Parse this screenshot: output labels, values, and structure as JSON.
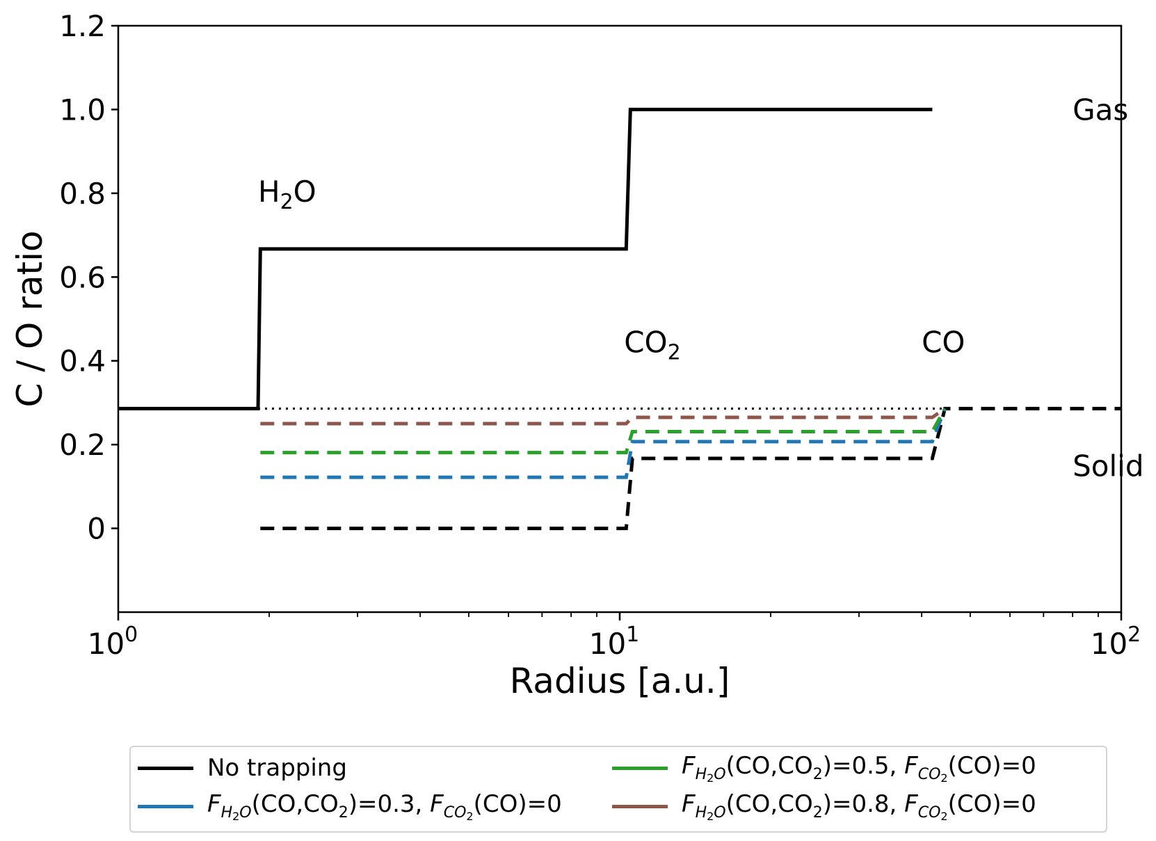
{
  "chart_data": {
    "type": "line",
    "title": "",
    "xlabel": "Radius [a.u.]",
    "ylabel": "C / O ratio",
    "xscale": "log",
    "xlim": [
      1,
      100
    ],
    "ylim": [
      -0.2,
      1.2
    ],
    "xticks": [
      {
        "value": 1,
        "base": "10",
        "exp": "0"
      },
      {
        "value": 10,
        "base": "10",
        "exp": "1"
      },
      {
        "value": 100,
        "base": "10",
        "exp": "2"
      }
    ],
    "yticks": [
      {
        "value": 0,
        "label": "0"
      },
      {
        "value": 0.2,
        "label": "0.2"
      },
      {
        "value": 0.4,
        "label": "0.4"
      },
      {
        "value": 0.6,
        "label": "0.6"
      },
      {
        "value": 0.8,
        "label": "0.8"
      },
      {
        "value": 1.0,
        "label": "1.0"
      },
      {
        "value": 1.2,
        "label": "1.2"
      }
    ],
    "grid": false,
    "legend_position": "bottom, outside plot",
    "annotations": [
      {
        "id": "h2o",
        "base": "H",
        "sub": "2",
        "rest": "O",
        "x": 1.9,
        "y": 0.78
      },
      {
        "id": "co2",
        "base": "CO",
        "sub": "2",
        "rest": "",
        "x": 10.2,
        "y": 0.42
      },
      {
        "id": "co",
        "base": "CO",
        "sub": "",
        "rest": "",
        "x": 40,
        "y": 0.42
      },
      {
        "id": "gas",
        "base": "Gas",
        "sub": "",
        "rest": "",
        "x": 80,
        "y": 0.975
      },
      {
        "id": "solid",
        "base": "Solid",
        "sub": "",
        "rest": "",
        "x": 80,
        "y": 0.125
      }
    ],
    "series": [
      {
        "id": "gas_no_trapping",
        "phase": "gas",
        "color": "#000000",
        "style": "solid",
        "x": [
          1,
          1.9,
          1.92,
          10.3,
          10.5,
          42
        ],
        "y": [
          0.286,
          0.286,
          0.667,
          0.667,
          1.0,
          1.0
        ]
      },
      {
        "id": "solid_no_trapping",
        "phase": "solid",
        "color": "#000000",
        "style": "dashed",
        "x": [
          1.92,
          10.3,
          10.6,
          42,
          44.5,
          100
        ],
        "y": [
          0.0,
          0.0,
          0.167,
          0.167,
          0.286,
          0.286
        ]
      },
      {
        "id": "solid_f03",
        "phase": "solid",
        "color": "#1f77b4",
        "style": "dashed",
        "x": [
          1.92,
          10.3,
          10.6,
          42,
          44.5
        ],
        "y": [
          0.122,
          0.122,
          0.207,
          0.207,
          0.286
        ]
      },
      {
        "id": "solid_f05",
        "phase": "solid",
        "color": "#2ca02c",
        "style": "dashed",
        "x": [
          1.92,
          10.3,
          10.6,
          42,
          44.5
        ],
        "y": [
          0.181,
          0.181,
          0.231,
          0.231,
          0.286
        ]
      },
      {
        "id": "solid_f08",
        "phase": "solid",
        "color": "#8c564b",
        "style": "dashed",
        "x": [
          1.92,
          10.3,
          10.6,
          42,
          44.5
        ],
        "y": [
          0.25,
          0.25,
          0.265,
          0.265,
          0.286
        ]
      },
      {
        "id": "bulk_reference",
        "phase": "total",
        "color": "#000000",
        "style": "dotted",
        "x": [
          1.9,
          44.5
        ],
        "y": [
          0.286,
          0.286
        ]
      }
    ]
  },
  "legend": {
    "items": [
      {
        "id": "no_trap",
        "color": "#000000",
        "label": "No trapping"
      },
      {
        "id": "f03",
        "color": "#1f77b4",
        "pre": "F",
        "pre_sub": "H",
        "pre_sub2": "2",
        "pre_sub3": "O",
        "mid": "(CO,CO",
        "mid_sub": "2",
        "mid_rest": ")=0.3, ",
        "post": "F",
        "post_sub": "CO",
        "post_sub2": "2",
        "tail": "(CO)=0"
      },
      {
        "id": "f05",
        "color": "#2ca02c",
        "pre": "F",
        "pre_sub": "H",
        "pre_sub2": "2",
        "pre_sub3": "O",
        "mid": "(CO,CO",
        "mid_sub": "2",
        "mid_rest": ")=0.5, ",
        "post": "F",
        "post_sub": "CO",
        "post_sub2": "2",
        "tail": "(CO)=0"
      },
      {
        "id": "f08",
        "color": "#8c564b",
        "pre": "F",
        "pre_sub": "H",
        "pre_sub2": "2",
        "pre_sub3": "O",
        "mid": "(CO,CO",
        "mid_sub": "2",
        "mid_rest": ")=0.8, ",
        "post": "F",
        "post_sub": "CO",
        "post_sub2": "2",
        "tail": "(CO)=0"
      }
    ]
  }
}
